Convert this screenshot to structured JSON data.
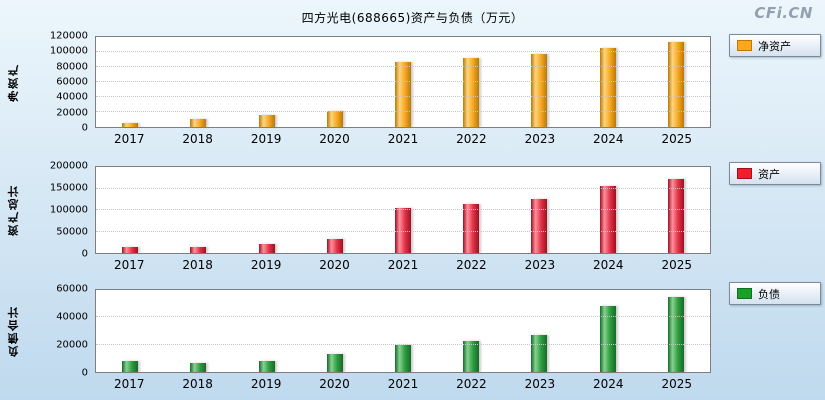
{
  "page": {
    "title": "四方光电(688665)资产与负债（万元）",
    "watermark": "CFi.CN",
    "background_top": "#ECF6FC",
    "background_bottom": "#BFD9EE"
  },
  "chart_data": [
    {
      "type": "bar",
      "title": "净资产",
      "ylabel": "净资产",
      "legend": "净资产",
      "legend_position": "right",
      "grid": true,
      "categories": [
        "2017",
        "2018",
        "2019",
        "2020",
        "2021",
        "2022",
        "2023",
        "2024",
        "2025"
      ],
      "values": [
        6000,
        11000,
        16000,
        22000,
        87000,
        92000,
        98000,
        106000,
        114000
      ],
      "ylim": [
        0,
        120000
      ],
      "yticks": [
        0,
        20000,
        40000,
        60000,
        80000,
        100000,
        120000
      ],
      "legend_color": "#FFA61C",
      "bar_color": "#F7A823",
      "bar_color_light": "#FFD47E",
      "bar_color_dark": "#B97908"
    },
    {
      "type": "bar",
      "title": "资产",
      "ylabel": "资产总计",
      "legend": "资产",
      "legend_position": "right",
      "grid": true,
      "categories": [
        "2017",
        "2018",
        "2019",
        "2020",
        "2021",
        "2022",
        "2023",
        "2024",
        "2025"
      ],
      "values": [
        13000,
        15000,
        22000,
        33000,
        105000,
        115000,
        125000,
        155000,
        172000
      ],
      "ylim": [
        0,
        200000
      ],
      "yticks": [
        0,
        50000,
        100000,
        150000,
        200000
      ],
      "legend_color": "#F21C2A",
      "bar_color": "#E23449",
      "bar_color_light": "#FF909C",
      "bar_color_dark": "#9E1020"
    },
    {
      "type": "bar",
      "title": "负债",
      "ylabel": "负债合计",
      "legend": "负债",
      "legend_position": "right",
      "grid": true,
      "categories": [
        "2017",
        "2018",
        "2019",
        "2020",
        "2021",
        "2022",
        "2023",
        "2024",
        "2025"
      ],
      "values": [
        8000,
        6500,
        8000,
        13500,
        19500,
        23000,
        27000,
        48000,
        55000
      ],
      "ylim": [
        0,
        60000
      ],
      "yticks": [
        0,
        20000,
        40000,
        60000
      ],
      "legend_color": "#17A125",
      "bar_color": "#2E9E41",
      "bar_color_light": "#86D292",
      "bar_color_dark": "#156B27"
    }
  ]
}
